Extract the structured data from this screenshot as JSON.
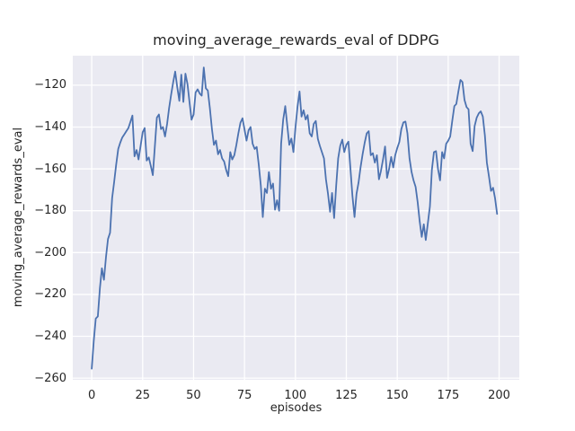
{
  "chart_data": {
    "type": "line",
    "title": "moving_average_rewards_eval of DDPG",
    "xlabel": "episodes",
    "ylabel": "moving_average_rewards_eval",
    "grid": true,
    "legend_position": "none",
    "xlim": [
      -9.3,
      209.9
    ],
    "ylim": [
      -260.8,
      -105.9
    ],
    "x_ticks": [
      {
        "label": "0",
        "value": 0
      },
      {
        "label": "25",
        "value": 25
      },
      {
        "label": "50",
        "value": 50
      },
      {
        "label": "75",
        "value": 75
      },
      {
        "label": "100",
        "value": 100
      },
      {
        "label": "125",
        "value": 125
      },
      {
        "label": "150",
        "value": 150
      },
      {
        "label": "175",
        "value": 175
      },
      {
        "label": "200",
        "value": 200
      }
    ],
    "y_ticks": [
      {
        "label": "−120",
        "value": -120
      },
      {
        "label": "−140",
        "value": -140
      },
      {
        "label": "−160",
        "value": -160
      },
      {
        "label": "−180",
        "value": -180
      },
      {
        "label": "−200",
        "value": -200
      },
      {
        "label": "−220",
        "value": -220
      },
      {
        "label": "−240",
        "value": -240
      },
      {
        "label": "−260",
        "value": -260
      }
    ],
    "style": {
      "figure_bg": "#ffffff",
      "axes_bg": "#eaeaf2",
      "grid_color": "#ffffff",
      "text_color": "#262626",
      "line_width": 1.8,
      "grid_width": 1.3
    },
    "series": [
      {
        "name": "moving_average_rewards_eval",
        "color": "#4c72b0",
        "x_start": 0,
        "x_step": 1,
        "values": [
          -255.5,
          -242.0,
          -231.5,
          -230.5,
          -217.0,
          -207.5,
          -213.0,
          -202.0,
          -193.5,
          -190.5,
          -174.0,
          -166.5,
          -158.0,
          -150.5,
          -147.5,
          -145.0,
          -143.5,
          -142.0,
          -140.5,
          -137.5,
          -134.5,
          -154.0,
          -151.0,
          -155.5,
          -149.0,
          -142.5,
          -140.5,
          -156.0,
          -154.5,
          -158.5,
          -163.0,
          -149.0,
          -135.5,
          -134.0,
          -141.0,
          -140.0,
          -144.5,
          -138.5,
          -131.0,
          -124.5,
          -118.5,
          -113.5,
          -121.0,
          -127.5,
          -115.0,
          -128.0,
          -114.5,
          -119.5,
          -128.0,
          -136.5,
          -134.0,
          -123.5,
          -122.0,
          -124.0,
          -125.0,
          -111.5,
          -121.5,
          -122.5,
          -131.0,
          -141.0,
          -148.5,
          -146.5,
          -153.0,
          -151.0,
          -155.0,
          -156.5,
          -160.5,
          -163.5,
          -152.0,
          -155.5,
          -153.5,
          -148.5,
          -143.0,
          -138.0,
          -135.8,
          -141.0,
          -146.5,
          -141.5,
          -140.0,
          -148.0,
          -150.5,
          -149.5,
          -158.0,
          -168.0,
          -183.0,
          -169.5,
          -171.5,
          -161.5,
          -169.5,
          -167.0,
          -179.5,
          -175.0,
          -180.0,
          -148.0,
          -136.5,
          -130.0,
          -139.5,
          -148.5,
          -145.5,
          -152.0,
          -140.5,
          -130.5,
          -123.0,
          -135.0,
          -132.0,
          -136.4,
          -134.3,
          -143.0,
          -144.5,
          -138.5,
          -137.1,
          -145.7,
          -149.0,
          -152.0,
          -155.0,
          -165.0,
          -172.0,
          -180.5,
          -171.5,
          -183.5,
          -168.0,
          -155.0,
          -149.0,
          -146.0,
          -152.0,
          -148.5,
          -147.0,
          -159.5,
          -173.0,
          -183.0,
          -172.0,
          -166.5,
          -159.0,
          -153.0,
          -147.5,
          -143.0,
          -142.0,
          -153.5,
          -152.5,
          -157.0,
          -153.5,
          -165.0,
          -161.0,
          -155.5,
          -149.3,
          -164.3,
          -160.0,
          -154.3,
          -159.3,
          -153.5,
          -150.0,
          -147.1,
          -141.0,
          -137.8,
          -137.4,
          -143.0,
          -155.0,
          -161.5,
          -165.5,
          -168.6,
          -176.0,
          -185.0,
          -192.5,
          -186.5,
          -194.0,
          -186.0,
          -178.0,
          -160.5,
          -152.0,
          -151.5,
          -160.0,
          -165.5,
          -152.0,
          -155.0,
          -148.0,
          -146.5,
          -144.5,
          -137.0,
          -130.0,
          -129.0,
          -123.0,
          -117.5,
          -118.5,
          -127.0,
          -130.5,
          -131.5,
          -148.0,
          -151.5,
          -139.5,
          -135.5,
          -133.5,
          -132.5,
          -135.0,
          -144.0,
          -157.0,
          -163.5,
          -170.5,
          -169.0,
          -174.0,
          -181.5
        ]
      }
    ]
  }
}
